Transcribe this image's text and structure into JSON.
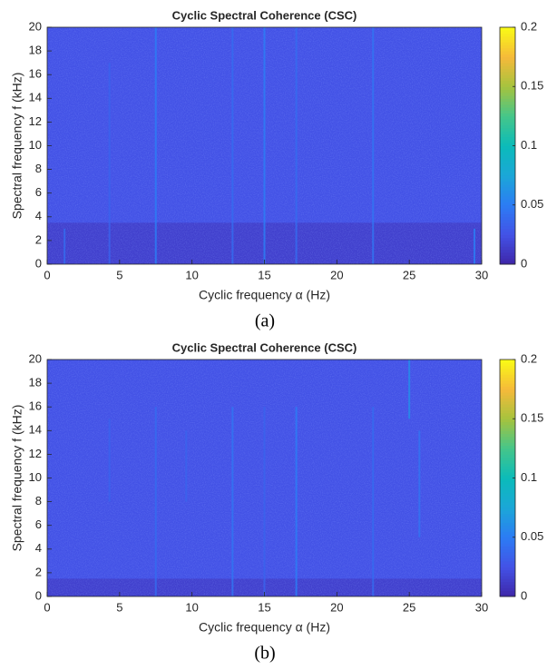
{
  "chart_data": [
    {
      "type": "heatmap",
      "title": "Cyclic Spectral Coherence (CSC)",
      "xlabel": "Cyclic frequency α (Hz)",
      "ylabel": "Spectral frequency f (kHz)",
      "caption": "(a)",
      "xlim": [
        0,
        30
      ],
      "xticks": [
        0,
        5,
        10,
        15,
        20,
        25,
        30
      ],
      "ylim": [
        0,
        20
      ],
      "yticks": [
        0,
        2,
        4,
        6,
        8,
        10,
        12,
        14,
        16,
        18,
        20
      ],
      "clim": [
        0,
        0.2
      ],
      "cticks": [
        0,
        0.05,
        0.1,
        0.15,
        0.2
      ],
      "colormap": [
        "#3e26a8",
        "#4352e6",
        "#2c7cf4",
        "#1ba7d8",
        "#0bbbb9",
        "#45c68a",
        "#a6c33e",
        "#f6ba3a",
        "#f9fb15"
      ],
      "background": 0.025,
      "bands": {
        "f_from": [
          0
        ],
        "f_to": [
          3.5
        ],
        "values": [
          0.015
        ]
      },
      "streaks": {
        "x": [
          1.2,
          4.3,
          7.5,
          12.8,
          15,
          17.2,
          22.5,
          29.5
        ],
        "f_from": [
          0,
          0,
          0,
          0,
          0,
          0,
          0,
          0
        ],
        "f_to": [
          3,
          17,
          20,
          20,
          20,
          20,
          20,
          3
        ],
        "values": [
          0.04,
          0.035,
          0.05,
          0.04,
          0.05,
          0.04,
          0.045,
          0.05
        ]
      }
    },
    {
      "type": "heatmap",
      "title": "Cyclic Spectral Coherence (CSC)",
      "xlabel": "Cyclic frequency α (Hz)",
      "ylabel": "Spectral frequency f (kHz)",
      "caption": "(b)",
      "xlim": [
        0,
        30
      ],
      "xticks": [
        0,
        5,
        10,
        15,
        20,
        25,
        30
      ],
      "ylim": [
        0,
        20
      ],
      "yticks": [
        0,
        2,
        4,
        6,
        8,
        10,
        12,
        14,
        16,
        18,
        20
      ],
      "clim": [
        0,
        0.2
      ],
      "cticks": [
        0,
        0.05,
        0.1,
        0.15,
        0.2
      ],
      "colormap": [
        "#3e26a8",
        "#4352e6",
        "#2c7cf4",
        "#1ba7d8",
        "#0bbbb9",
        "#45c68a",
        "#a6c33e",
        "#f6ba3a",
        "#f9fb15"
      ],
      "background": 0.025,
      "bands": {
        "f_from": [
          0
        ],
        "f_to": [
          1.5
        ],
        "values": [
          0.015
        ]
      },
      "streaks": {
        "x": [
          4.3,
          7.5,
          9.6,
          12.8,
          15,
          17.2,
          22.5,
          25,
          25.7
        ],
        "f_from": [
          8,
          0,
          8,
          0,
          0,
          0,
          0,
          15,
          5
        ],
        "f_to": [
          15,
          16,
          14,
          16,
          16,
          16,
          16,
          20,
          14
        ],
        "values": [
          0.035,
          0.04,
          0.035,
          0.045,
          0.035,
          0.05,
          0.04,
          0.06,
          0.045
        ]
      }
    }
  ]
}
